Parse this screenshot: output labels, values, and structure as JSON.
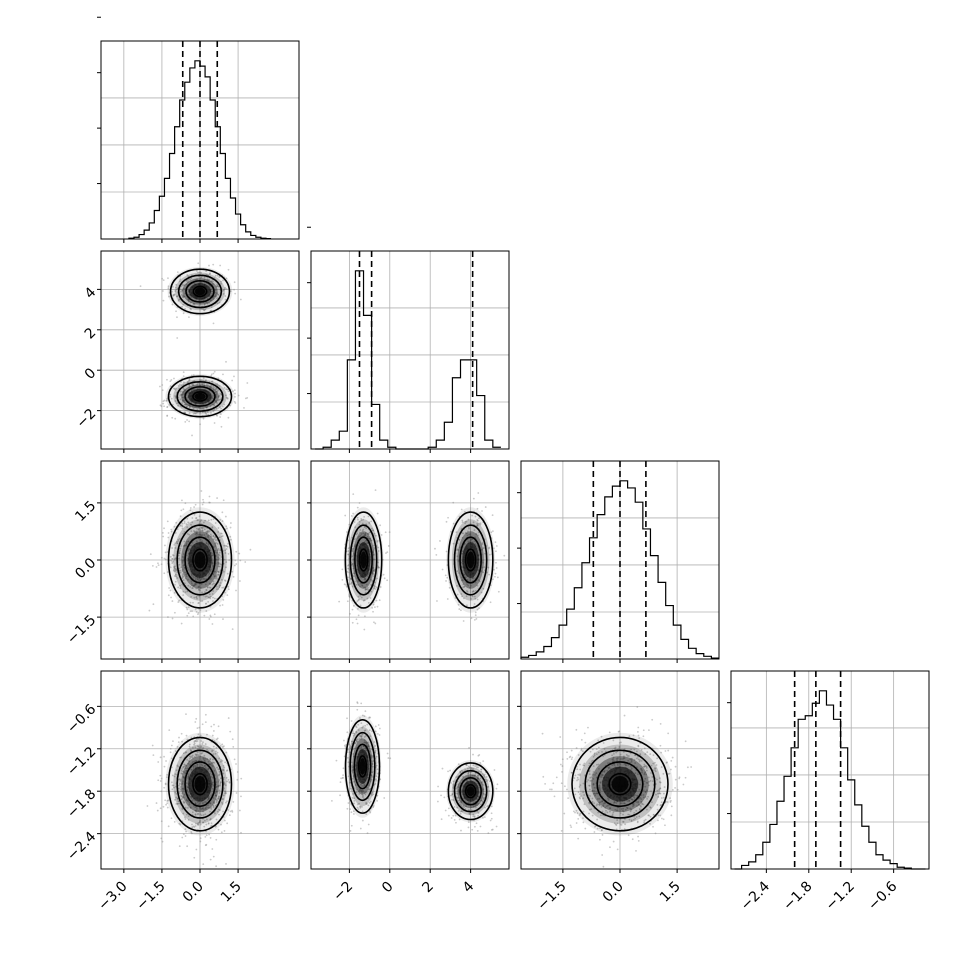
{
  "chart_data": {
    "type": "corner",
    "grid": true,
    "parameters": [
      {
        "ticks": [
          -3.0,
          -1.5,
          0.0,
          1.5
        ],
        "tick_labels": [
          "−3.0",
          "−1.5",
          "0.0",
          "1.5"
        ],
        "range": [
          -3.9,
          3.9
        ],
        "quantiles": [
          -0.68,
          0.0,
          0.68
        ],
        "histogram": {
          "bins": [
            -2.8,
            -2.6,
            -2.4,
            -2.2,
            -2.0,
            -1.8,
            -1.6,
            -1.4,
            -1.2,
            -1.0,
            -0.8,
            -0.6,
            -0.4,
            -0.2,
            0.0,
            0.2,
            0.4,
            0.6,
            0.8,
            1.0,
            1.2,
            1.4,
            1.6,
            1.8,
            2.0,
            2.2,
            2.4,
            2.6,
            2.8
          ],
          "counts": [
            0.004,
            0.01,
            0.025,
            0.05,
            0.09,
            0.16,
            0.24,
            0.34,
            0.48,
            0.63,
            0.78,
            0.88,
            0.96,
            1.0,
            0.97,
            0.91,
            0.78,
            0.63,
            0.48,
            0.34,
            0.23,
            0.14,
            0.08,
            0.04,
            0.02,
            0.01,
            0.004,
            0.002
          ]
        },
        "axis_ticks": [
          0,
          1,
          2,
          3
        ],
        "show_x_labels": true,
        "show_y_labels": false
      },
      {
        "ticks": [
          -2,
          0,
          2,
          4
        ],
        "tick_labels": [
          "−2",
          "0",
          "2",
          "4"
        ],
        "range": [
          -3.9,
          5.9
        ],
        "quantiles": [
          -1.5,
          -0.9,
          4.1
        ],
        "histogram": {
          "bins": [
            -3.7,
            -3.3,
            -2.9,
            -2.5,
            -2.1,
            -1.7,
            -1.3,
            -0.9,
            -0.5,
            -0.1,
            0.3,
            0.7,
            1.1,
            1.5,
            1.9,
            2.3,
            2.7,
            3.1,
            3.5,
            3.9,
            4.3,
            4.7,
            5.1,
            5.5
          ],
          "counts": [
            0.0,
            0.01,
            0.05,
            0.1,
            0.5,
            1.0,
            0.75,
            0.25,
            0.05,
            0.01,
            0.0,
            0.0,
            0.0,
            0.0,
            0.01,
            0.05,
            0.15,
            0.4,
            0.5,
            0.5,
            0.3,
            0.05,
            0.01
          ]
        },
        "axis_ticks": [
          0,
          1,
          2,
          3
        ],
        "show_x_labels": true,
        "show_y_labels": true
      },
      {
        "ticks": [
          -1.5,
          0.0,
          1.5
        ],
        "tick_labels": [
          "−1.5",
          "0.0",
          "1.5"
        ],
        "range": [
          -2.6,
          2.6
        ],
        "quantiles": [
          -0.7,
          0.0,
          0.68
        ],
        "histogram": {
          "bins": [
            -2.6,
            -2.4,
            -2.2,
            -2.0,
            -1.8,
            -1.6,
            -1.4,
            -1.2,
            -1.0,
            -0.8,
            -0.6,
            -0.4,
            -0.2,
            0.0,
            0.2,
            0.4,
            0.6,
            0.8,
            1.0,
            1.2,
            1.4,
            1.6,
            1.8,
            2.0,
            2.2,
            2.4,
            2.6
          ],
          "counts": [
            0.01,
            0.02,
            0.04,
            0.07,
            0.12,
            0.19,
            0.28,
            0.4,
            0.54,
            0.68,
            0.81,
            0.91,
            0.97,
            1.0,
            0.96,
            0.88,
            0.73,
            0.58,
            0.43,
            0.3,
            0.19,
            0.11,
            0.06,
            0.03,
            0.015,
            0.005
          ]
        },
        "axis_ticks": [
          0,
          1,
          2
        ],
        "show_x_labels": true,
        "show_y_labels": true
      },
      {
        "ticks": [
          -2.4,
          -1.8,
          -1.2,
          -0.6
        ],
        "tick_labels": [
          "−2.4",
          "−1.8",
          "−1.2",
          "−0.6"
        ],
        "range": [
          -2.9,
          -0.1
        ],
        "quantiles": [
          -2.0,
          -1.7,
          -1.35
        ],
        "histogram": {
          "bins": [
            -2.85,
            -2.75,
            -2.65,
            -2.55,
            -2.45,
            -2.35,
            -2.25,
            -2.15,
            -2.05,
            -1.95,
            -1.85,
            -1.75,
            -1.65,
            -1.55,
            -1.45,
            -1.35,
            -1.25,
            -1.15,
            -1.05,
            -0.95,
            -0.85,
            -0.75,
            -0.65,
            -0.55,
            -0.45,
            -0.35,
            -0.25,
            -0.15
          ],
          "counts": [
            0.0,
            0.02,
            0.04,
            0.08,
            0.15,
            0.25,
            0.38,
            0.52,
            0.68,
            0.84,
            0.86,
            0.93,
            1.0,
            0.92,
            0.84,
            0.68,
            0.5,
            0.36,
            0.24,
            0.15,
            0.08,
            0.05,
            0.03,
            0.01,
            0.005,
            0.0,
            0.0
          ]
        },
        "axis_ticks": [
          0,
          1,
          2
        ],
        "show_x_labels": true,
        "show_y_labels": true
      }
    ],
    "density_blobs": [
      {
        "row": 1,
        "col": 0,
        "clusters": [
          {
            "cx": 0.0,
            "cy": 3.9,
            "sx": 0.58,
            "sy": 0.55,
            "w": 0.45
          },
          {
            "cx": 0.0,
            "cy": -1.3,
            "sx": 0.62,
            "sy": 0.5,
            "w": 0.55
          }
        ]
      },
      {
        "row": 2,
        "col": 0,
        "clusters": [
          {
            "cx": 0.0,
            "cy": 0.0,
            "sx": 0.62,
            "sy": 0.63,
            "w": 1.0
          }
        ]
      },
      {
        "row": 2,
        "col": 1,
        "clusters": [
          {
            "cx": -1.3,
            "cy": 0.0,
            "sx": 0.45,
            "sy": 0.63,
            "w": 0.55
          },
          {
            "cx": 4.0,
            "cy": 0.0,
            "sx": 0.55,
            "sy": 0.63,
            "w": 0.45
          }
        ]
      },
      {
        "row": 3,
        "col": 0,
        "clusters": [
          {
            "cx": 0.0,
            "cy": -1.7,
            "sx": 0.62,
            "sy": 0.33,
            "w": 1.0
          }
        ]
      },
      {
        "row": 3,
        "col": 1,
        "clusters": [
          {
            "cx": -1.35,
            "cy": -1.45,
            "sx": 0.42,
            "sy": 0.33,
            "w": 0.55
          },
          {
            "cx": 4.0,
            "cy": -1.8,
            "sx": 0.55,
            "sy": 0.2,
            "w": 0.45
          }
        ]
      },
      {
        "row": 3,
        "col": 2,
        "clusters": [
          {
            "cx": 0.0,
            "cy": -1.7,
            "sx": 0.63,
            "sy": 0.33,
            "w": 1.0
          }
        ]
      }
    ]
  }
}
